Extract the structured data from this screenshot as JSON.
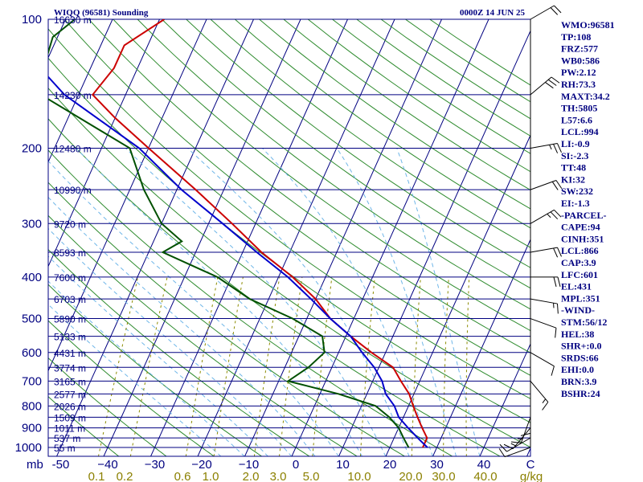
{
  "header": {
    "station": "WIQQ (96581) Sounding",
    "time": "0000Z 14 JUN 25"
  },
  "colors": {
    "axis": "#000080",
    "isobar": "#000080",
    "isotherm": "#000080",
    "dry_adiabat": "#2e8b2e",
    "moist_adiabat": "#6fb6e8",
    "mixing_ratio": "#8b8b00",
    "temperature": "#cc0000",
    "dewpoint": "#005000",
    "parcel": "#0000cc",
    "wind": "#000000"
  },
  "chart_data": {
    "type": "skew-t log-p",
    "x_unit_label": "C",
    "y_unit_label": "mb",
    "temperature_ticks": [
      -50,
      -40,
      -30,
      -20,
      -10,
      0,
      10,
      20,
      30,
      40
    ],
    "temperature_tick_labels": [
      "-50",
      "−40",
      "−30",
      "−20",
      "−10",
      "0",
      "10",
      "20",
      "30",
      "40"
    ],
    "pressure_ticks": [
      100,
      200,
      300,
      400,
      500,
      600,
      700,
      800,
      900,
      1000
    ],
    "pressure_tick_labels": [
      "100",
      "200",
      "300",
      "400",
      "500",
      "600",
      "700",
      "800",
      "900",
      "1000"
    ],
    "plim": [
      100,
      1000
    ],
    "mixing_ratio_labels": [
      "0.1",
      "0.2",
      "0.6",
      "1.0",
      "2.0",
      "3.0",
      "5.0",
      "10.0",
      "20.0",
      "30.0",
      "40.0",
      "g/kg"
    ],
    "mixing_ratio_values": [
      0.1,
      0.2,
      0.6,
      1.0,
      2.0,
      3.0,
      5.0,
      10.0,
      20.0,
      30.0,
      40.0
    ],
    "height_labels": [
      {
        "p": 100,
        "label": "16630 m"
      },
      {
        "p": 150,
        "label": "14230 m"
      },
      {
        "p": 200,
        "label": "12480 m"
      },
      {
        "p": 250,
        "label": "10990 m"
      },
      {
        "p": 300,
        "label": "9720 m"
      },
      {
        "p": 350,
        "label": "8593 m"
      },
      {
        "p": 400,
        "label": "7600 m"
      },
      {
        "p": 450,
        "label": "6703 m"
      },
      {
        "p": 500,
        "label": "5890 m"
      },
      {
        "p": 550,
        "label": "5133 m"
      },
      {
        "p": 600,
        "label": "4431 m"
      },
      {
        "p": 650,
        "label": "3774 m"
      },
      {
        "p": 700,
        "label": "3165 m"
      },
      {
        "p": 750,
        "label": "2577 m"
      },
      {
        "p": 800,
        "label": "2026 m"
      },
      {
        "p": 850,
        "label": "1509 m"
      },
      {
        "p": 900,
        "label": "1011 m"
      },
      {
        "p": 950,
        "label": "537 m"
      },
      {
        "p": 1000,
        "label": "55 m"
      }
    ],
    "series": [
      {
        "name": "temperature",
        "points": [
          [
            100,
            -69
          ],
          [
            115,
            -75
          ],
          [
            130,
            -75
          ],
          [
            150,
            -77
          ],
          [
            170,
            -70
          ],
          [
            200,
            -60
          ],
          [
            250,
            -46
          ],
          [
            300,
            -35
          ],
          [
            350,
            -26
          ],
          [
            400,
            -17
          ],
          [
            450,
            -10
          ],
          [
            500,
            -5
          ],
          [
            550,
            1
          ],
          [
            600,
            7
          ],
          [
            650,
            13
          ],
          [
            700,
            16
          ],
          [
            750,
            19
          ],
          [
            800,
            21
          ],
          [
            850,
            23
          ],
          [
            900,
            25
          ],
          [
            950,
            27
          ],
          [
            1000,
            27
          ]
        ]
      },
      {
        "name": "dewpoint",
        "points": [
          [
            100,
            -88
          ],
          [
            110,
            -91
          ],
          [
            130,
            -90
          ],
          [
            150,
            -88
          ],
          [
            200,
            -64
          ],
          [
            250,
            -57
          ],
          [
            300,
            -50
          ],
          [
            330,
            -44
          ],
          [
            350,
            -47
          ],
          [
            400,
            -33
          ],
          [
            450,
            -24
          ],
          [
            500,
            -13
          ],
          [
            550,
            -5
          ],
          [
            600,
            -3
          ],
          [
            650,
            -5
          ],
          [
            700,
            -8
          ],
          [
            750,
            4
          ],
          [
            800,
            13
          ],
          [
            850,
            17
          ],
          [
            900,
            20
          ],
          [
            950,
            22
          ],
          [
            1000,
            24
          ]
        ]
      },
      {
        "name": "parcel",
        "points": [
          [
            120,
            -95
          ],
          [
            150,
            -83
          ],
          [
            200,
            -62
          ],
          [
            250,
            -49
          ],
          [
            300,
            -37
          ],
          [
            350,
            -27
          ],
          [
            400,
            -18
          ],
          [
            450,
            -11
          ],
          [
            500,
            -5
          ],
          [
            550,
            1
          ],
          [
            600,
            5
          ],
          [
            650,
            9
          ],
          [
            700,
            12
          ],
          [
            750,
            14
          ],
          [
            800,
            17
          ],
          [
            850,
            19
          ],
          [
            900,
            22
          ],
          [
            950,
            25
          ],
          [
            1000,
            28
          ]
        ]
      }
    ],
    "winds": [
      {
        "p": 100,
        "dir": 60,
        "spd": 20
      },
      {
        "p": 150,
        "dir": 50,
        "spd": 30
      },
      {
        "p": 200,
        "dir": 80,
        "spd": 25
      },
      {
        "p": 250,
        "dir": 70,
        "spd": 20
      },
      {
        "p": 300,
        "dir": 60,
        "spd": 25
      },
      {
        "p": 350,
        "dir": 80,
        "spd": 20
      },
      {
        "p": 400,
        "dir": 90,
        "spd": 20
      },
      {
        "p": 450,
        "dir": 100,
        "spd": 15
      },
      {
        "p": 500,
        "dir": 110,
        "spd": 10
      },
      {
        "p": 600,
        "dir": 120,
        "spd": 10
      },
      {
        "p": 700,
        "dir": 140,
        "spd": 15
      },
      {
        "p": 800,
        "dir": 180,
        "spd": 10
      },
      {
        "p": 850,
        "dir": 200,
        "spd": 15
      },
      {
        "p": 900,
        "dir": 220,
        "spd": 15
      },
      {
        "p": 950,
        "dir": 240,
        "spd": 10
      },
      {
        "p": 1000,
        "dir": 250,
        "spd": 10
      }
    ]
  },
  "indices": [
    "WMO:96581",
    "TP:108",
    "FRZ:577",
    "WB0:586",
    "PW:2.12",
    "RH:73.3",
    "MAXT:34.2",
    "TH:5805",
    "L57:6.6",
    "LCL:994",
    "LI:-0.9",
    "SI:-2.3",
    "TT:48",
    "KI:32",
    "SW:232",
    "EI:-1.3",
    "-PARCEL-",
    "CAPE:94",
    "CINH:351",
    "LCL:866",
    "CAP:3.9",
    "LFC:601",
    "EL:431",
    "MPL:351",
    "-WIND-",
    "STM:56/12",
    "HEL:38",
    "SHR+:0.0",
    "SRDS:66",
    "EHI:0.0",
    "BRN:3.9",
    "BSHR:24"
  ]
}
